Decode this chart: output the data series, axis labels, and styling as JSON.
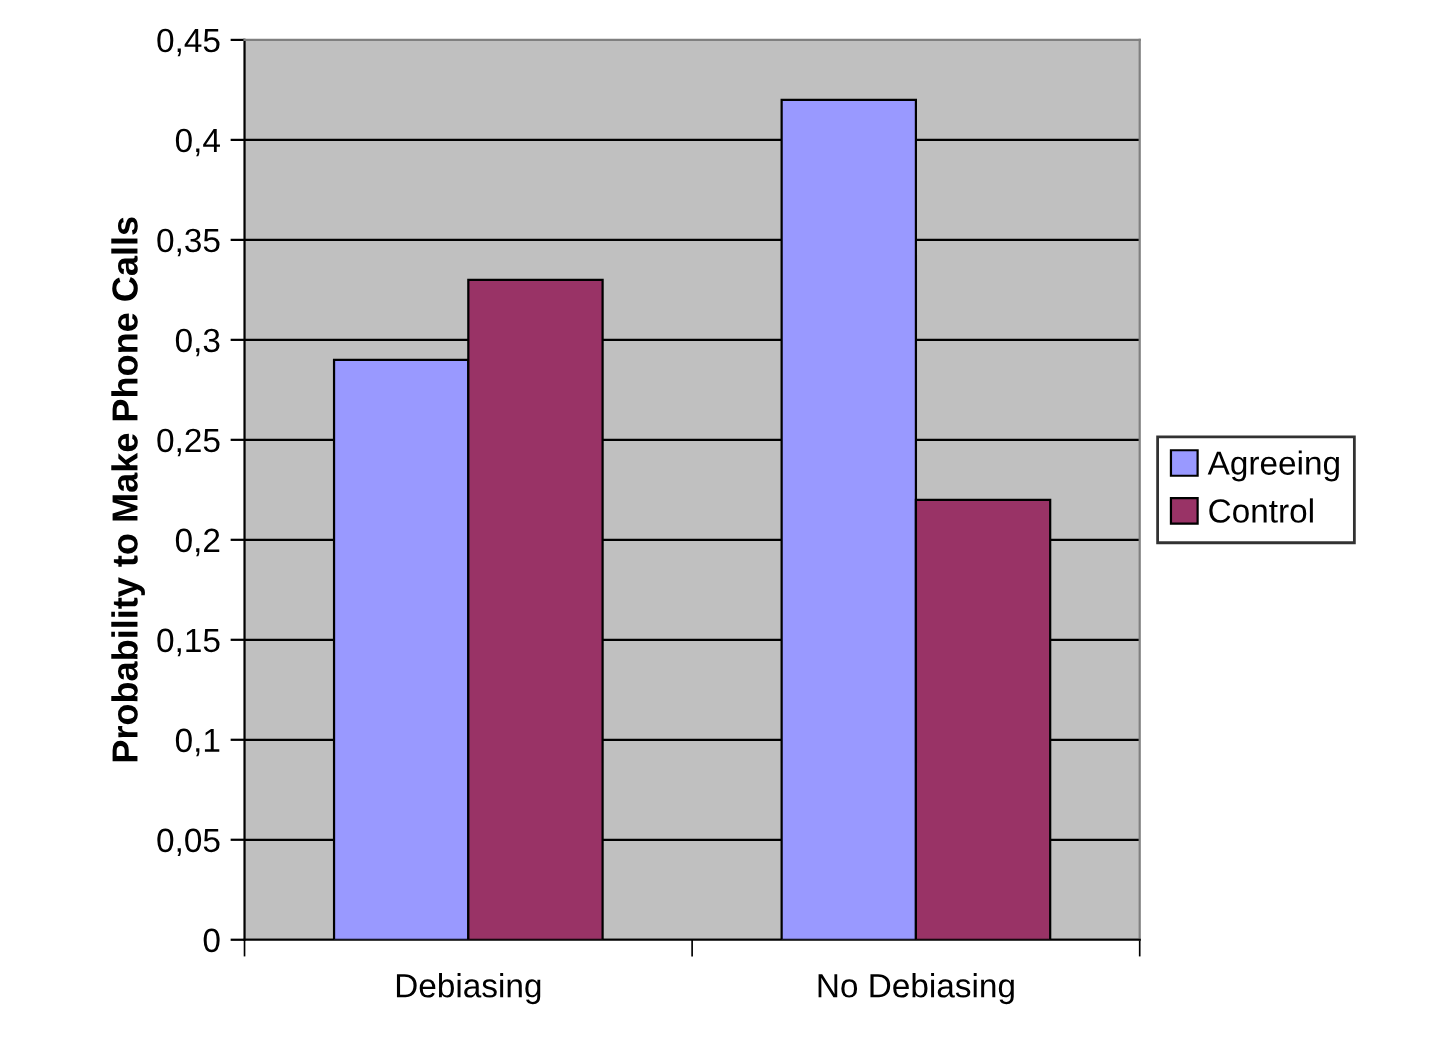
{
  "chart_data": {
    "type": "bar",
    "ylabel": "Probability to Make Phone Calls",
    "categories": [
      "Debiasing",
      "No Debiasing"
    ],
    "series": [
      {
        "name": "Agreeing",
        "color": "#9999ff",
        "values": [
          0.29,
          0.42
        ]
      },
      {
        "name": "Control",
        "color": "#993366",
        "values": [
          0.33,
          0.22
        ]
      }
    ],
    "ylim": [
      0,
      0.45
    ],
    "yticks": [
      0,
      {
        "value": 0.05,
        "label": "0,05"
      },
      {
        "value": 0.1,
        "label": "0,1"
      },
      {
        "value": 0.15,
        "label": "0,15"
      },
      {
        "value": 0.2,
        "label": "0,2"
      },
      {
        "value": 0.25,
        "label": "0,25"
      },
      {
        "value": 0.3,
        "label": "0,3"
      },
      {
        "value": 0.35,
        "label": "0,35"
      },
      {
        "value": 0.4,
        "label": "0,4"
      },
      {
        "value": 0.45,
        "label": "0,45"
      }
    ],
    "grid": "y",
    "legend": "right"
  }
}
